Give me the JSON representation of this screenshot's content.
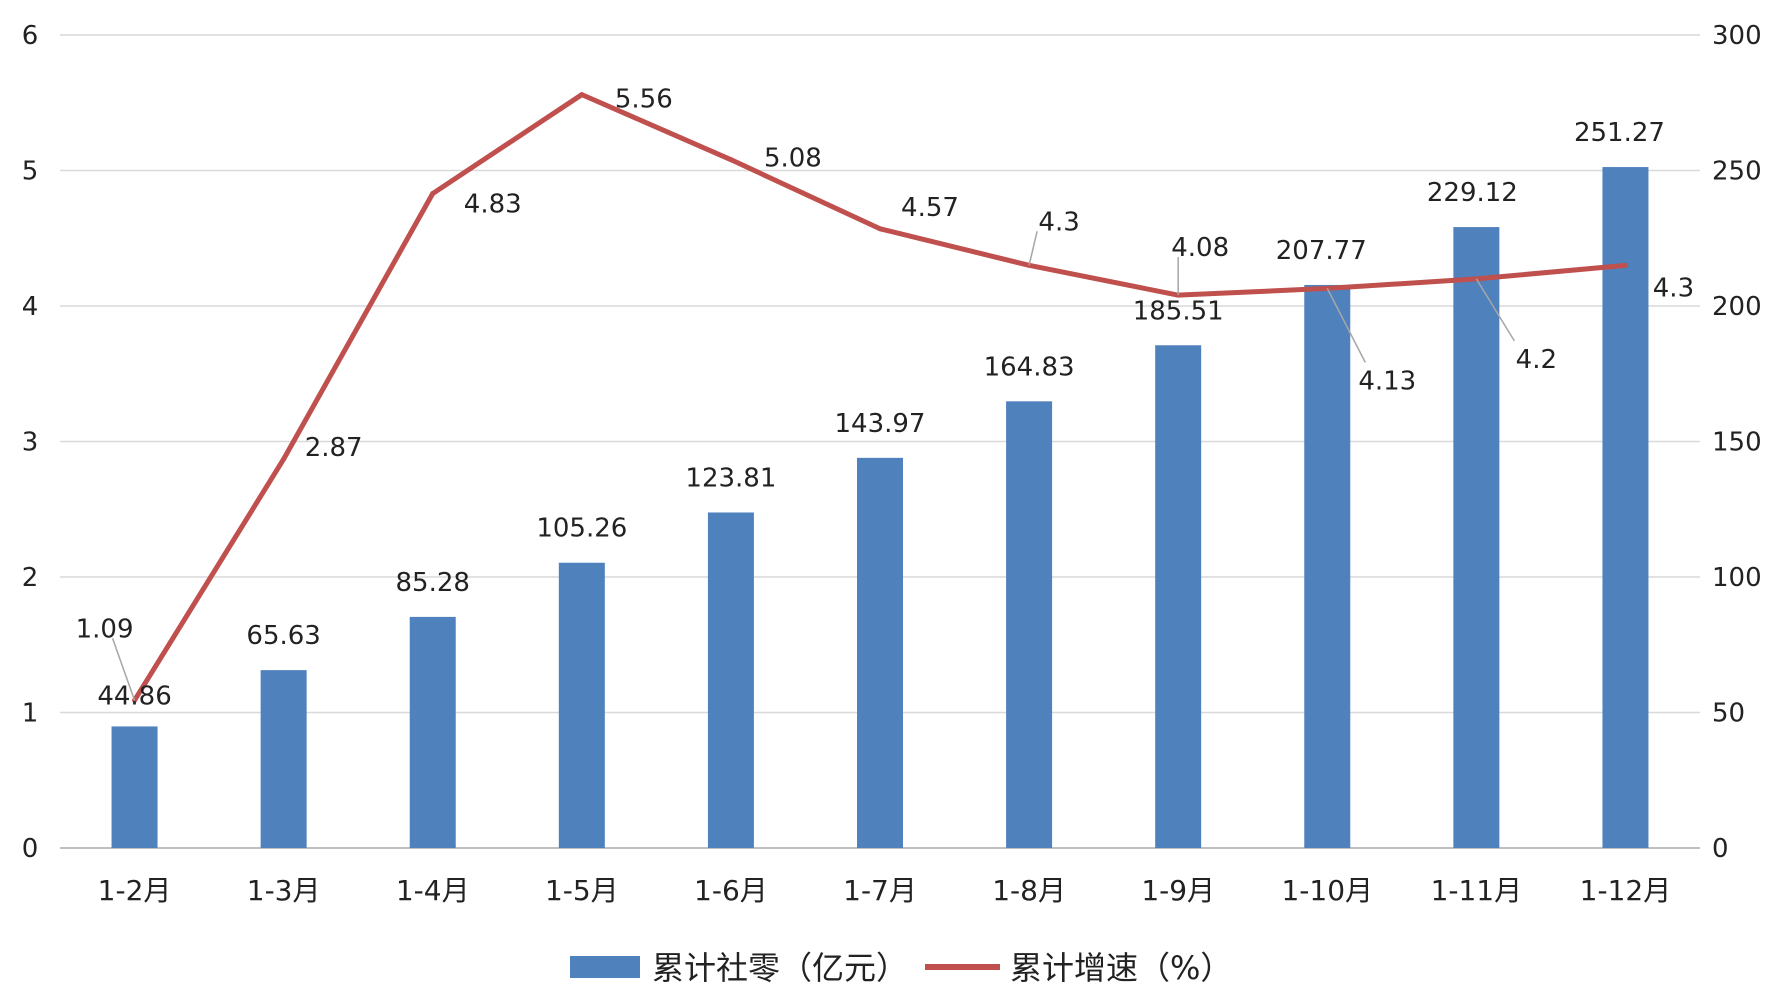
{
  "chart_data": {
    "type": "bar",
    "categories": [
      "1-2月",
      "1-3月",
      "1-4月",
      "1-5月",
      "1-6月",
      "1-7月",
      "1-8月",
      "1-9月",
      "1-10月",
      "1-11月",
      "1-12月"
    ],
    "series": [
      {
        "name": "累计社零（亿元）",
        "type": "bar",
        "axis": "right",
        "color": "#4f81bd",
        "values": [
          44.86,
          65.63,
          85.28,
          105.26,
          123.81,
          143.97,
          164.83,
          185.51,
          207.77,
          229.12,
          251.27
        ],
        "labels": [
          "44.86",
          "65.63",
          "85.28",
          "105.26",
          "123.81",
          "143.97",
          "164.83",
          "185.51",
          "207.77",
          "229.12",
          "251.27"
        ]
      },
      {
        "name": "累计增速（%）",
        "type": "line",
        "axis": "left",
        "color": "#c0504d",
        "values": [
          1.09,
          2.87,
          4.83,
          5.56,
          5.08,
          4.57,
          4.3,
          4.08,
          4.13,
          4.2,
          4.3
        ],
        "labels": [
          "1.09",
          "2.87",
          "4.83",
          "5.56",
          "5.08",
          "4.57",
          "4.3",
          "4.08",
          "4.13",
          "4.2",
          "4.3"
        ]
      }
    ],
    "y_left": {
      "range": [
        0,
        6
      ],
      "ticks": [
        "0",
        "1",
        "2",
        "3",
        "4",
        "5",
        "6"
      ]
    },
    "y_right": {
      "range": [
        0,
        300
      ],
      "ticks": [
        "0",
        "50",
        "100",
        "150",
        "200",
        "250",
        "300"
      ]
    },
    "grid": true,
    "legend_position": "bottom",
    "title": "",
    "xlabel": "",
    "ylabel": ""
  }
}
